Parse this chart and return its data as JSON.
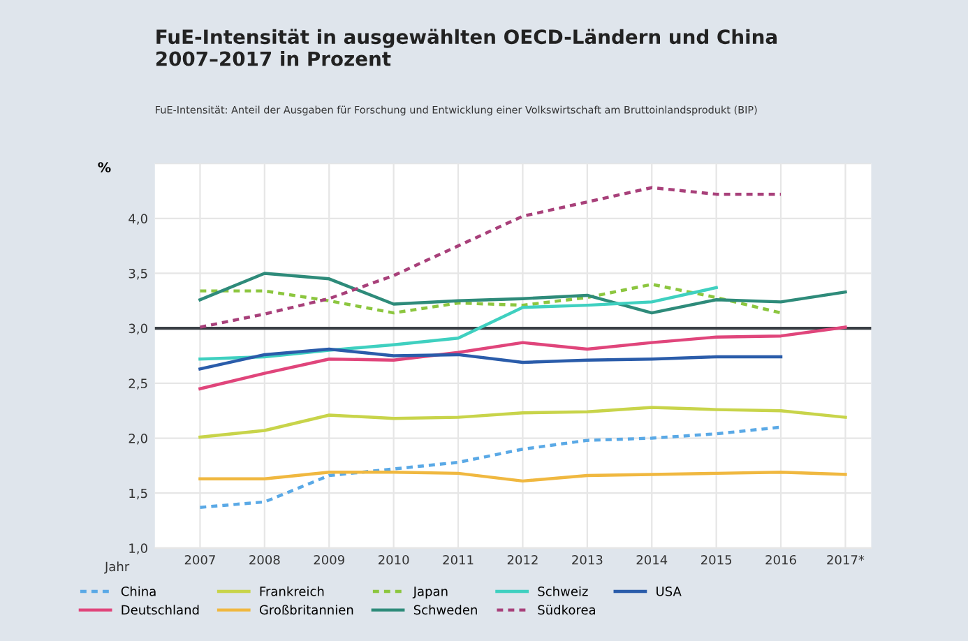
{
  "chart_data": {
    "type": "line",
    "title": "FuE-Intensität in ausgewählten OECD-Ländern und China\n2007–2017 in Prozent",
    "subtitle": "FuE-Intensität: Anteil der Ausgaben für Forschung und Entwicklung einer Volkswirtschaft am Bruttoinlandsprodukt (BIP)",
    "xlabel": "Jahr",
    "ylabel": "%",
    "categories": [
      "2007",
      "2008",
      "2009",
      "2010",
      "2011",
      "2012",
      "2013",
      "2014",
      "2015",
      "2016",
      "2017*"
    ],
    "ylim": [
      1.0,
      4.5
    ],
    "yticks": [
      {
        "value": 1.0,
        "label": "1,0"
      },
      {
        "value": 1.5,
        "label": "1,5"
      },
      {
        "value": 2.0,
        "label": "2,0"
      },
      {
        "value": 2.5,
        "label": "2,5"
      },
      {
        "value": 3.0,
        "label": "3,0"
      },
      {
        "value": 3.5,
        "label": "3,5"
      },
      {
        "value": 4.0,
        "label": "4,0"
      },
      {
        "value": 4.5,
        "label": null
      }
    ],
    "grid": true,
    "legend": "bottom",
    "marker": "none",
    "ref_lines": [
      {
        "axis": "y",
        "value": 3.0,
        "label": null,
        "color": "#3a3f45",
        "line_style": "solid"
      }
    ],
    "series": [
      {
        "name": "China",
        "color": "#5aa9e6",
        "line_style": "dotted",
        "values": [
          1.37,
          1.42,
          1.66,
          1.72,
          1.78,
          1.9,
          1.98,
          2.0,
          2.04,
          2.1,
          null
        ]
      },
      {
        "name": "Deutschland",
        "color": "#e0457b",
        "line_style": "solid",
        "values": [
          2.45,
          2.59,
          2.72,
          2.71,
          2.78,
          2.87,
          2.81,
          2.87,
          2.92,
          2.93,
          3.01
        ]
      },
      {
        "name": "Frankreich",
        "color": "#c8d44a",
        "line_style": "solid",
        "values": [
          2.01,
          2.07,
          2.21,
          2.18,
          2.19,
          2.23,
          2.24,
          2.28,
          2.26,
          2.25,
          2.19
        ]
      },
      {
        "name": "Großbritannien",
        "color": "#f0b840",
        "line_style": "solid",
        "values": [
          1.63,
          1.63,
          1.69,
          1.69,
          1.68,
          1.61,
          1.66,
          1.67,
          1.68,
          1.69,
          1.67
        ]
      },
      {
        "name": "Japan",
        "color": "#8cc63f",
        "line_style": "dotted",
        "values": [
          3.34,
          3.34,
          3.25,
          3.14,
          3.23,
          3.21,
          3.28,
          3.4,
          3.28,
          3.14,
          null
        ]
      },
      {
        "name": "Schweden",
        "color": "#2e8b7a",
        "line_style": "solid",
        "values": [
          3.26,
          3.5,
          3.45,
          3.22,
          3.25,
          3.27,
          3.3,
          3.14,
          3.26,
          3.24,
          3.33
        ]
      },
      {
        "name": "Schweiz",
        "color": "#3fd0c0",
        "line_style": "solid",
        "values": [
          2.72,
          2.74,
          2.8,
          2.85,
          2.91,
          3.19,
          3.21,
          3.24,
          3.37,
          null,
          null
        ]
      },
      {
        "name": "Südkorea",
        "color": "#a8407a",
        "line_style": "dotted",
        "values": [
          3.01,
          3.13,
          3.27,
          3.48,
          3.75,
          4.02,
          4.15,
          4.28,
          4.22,
          4.22,
          null
        ]
      },
      {
        "name": "USA",
        "color": "#2a5caa",
        "line_style": "solid",
        "values": [
          2.63,
          2.76,
          2.81,
          2.75,
          2.76,
          2.69,
          2.71,
          2.72,
          2.74,
          2.74,
          null
        ]
      }
    ]
  }
}
